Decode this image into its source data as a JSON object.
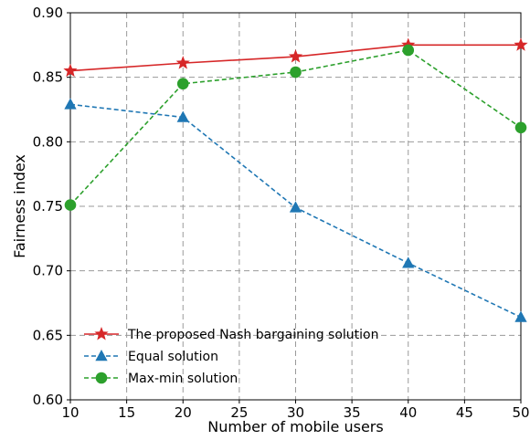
{
  "chart_data": {
    "type": "line",
    "x": [
      10,
      20,
      30,
      40,
      50
    ],
    "xlabel": "Number of mobile users",
    "ylabel": "Fairness index",
    "xlim": [
      10,
      50
    ],
    "ylim": [
      0.6,
      0.9
    ],
    "xticks": [
      "10",
      "15",
      "20",
      "25",
      "30",
      "35",
      "40",
      "45",
      "50"
    ],
    "yticks": [
      "0.60",
      "0.65",
      "0.70",
      "0.75",
      "0.80",
      "0.85",
      "0.90"
    ],
    "grid": true,
    "legend_position": "bottom-left",
    "series": [
      {
        "name": "The proposed Nash bargaining solution",
        "values": [
          0.855,
          0.861,
          0.866,
          0.875,
          0.875
        ],
        "color": "#d62728",
        "line_style": "solid",
        "marker": "star"
      },
      {
        "name": "Equal solution",
        "values": [
          0.829,
          0.819,
          0.749,
          0.706,
          0.664
        ],
        "color": "#1f77b4",
        "line_style": "dashed",
        "marker": "triangle"
      },
      {
        "name": "Max-min solution",
        "values": [
          0.751,
          0.845,
          0.854,
          0.871,
          0.811
        ],
        "color": "#2ca02c",
        "line_style": "dashed",
        "marker": "circle"
      }
    ]
  }
}
